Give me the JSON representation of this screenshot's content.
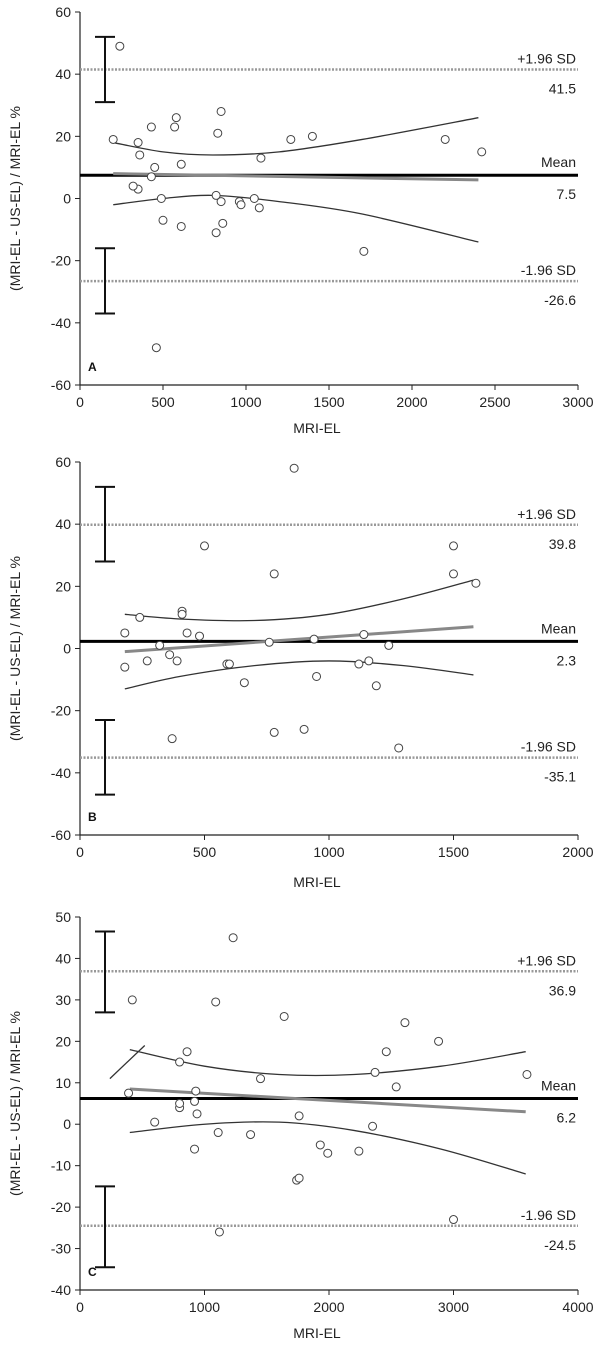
{
  "chart_data": [
    {
      "type": "scatter",
      "panel": "A",
      "xlabel": "MRI-EL",
      "ylabel": "(MRI-EL - US-EL) / MRI-EL %",
      "xlim": [
        0,
        3000
      ],
      "ylim": [
        -60,
        60
      ],
      "x_ticks": [
        "0",
        "500",
        "1000",
        "1500",
        "2000",
        "2500",
        "3000"
      ],
      "y_ticks": [
        "-60",
        "-40",
        "-20",
        "0",
        "20",
        "40",
        "60"
      ],
      "mean": {
        "label": "Mean",
        "value_label": "7.5",
        "value": 7.5
      },
      "upper_loa": {
        "label": "+1.96 SD",
        "value_label": "41.5",
        "value": 41.5
      },
      "lower_loa": {
        "label": "-1.96 SD",
        "value_label": "-26.6",
        "value": -26.6
      },
      "upper_ci": [
        31,
        52
      ],
      "lower_ci": [
        -37,
        -16
      ],
      "regression_line": [
        [
          200,
          8
        ],
        [
          2400,
          6
        ]
      ],
      "upper_curve": [
        [
          200,
          18
        ],
        [
          500,
          15
        ],
        [
          800,
          14
        ],
        [
          1200,
          15
        ],
        [
          1700,
          19
        ],
        [
          2400,
          26
        ]
      ],
      "lower_curve": [
        [
          200,
          -2
        ],
        [
          500,
          0
        ],
        [
          800,
          1
        ],
        [
          1200,
          -1
        ],
        [
          1700,
          -5
        ],
        [
          2400,
          -14
        ]
      ],
      "points": [
        [
          240,
          49
        ],
        [
          200,
          19
        ],
        [
          350,
          18
        ],
        [
          430,
          23
        ],
        [
          360,
          14
        ],
        [
          450,
          10
        ],
        [
          350,
          3
        ],
        [
          320,
          4
        ],
        [
          430,
          7
        ],
        [
          580,
          26
        ],
        [
          570,
          23
        ],
        [
          610,
          11
        ],
        [
          850,
          28
        ],
        [
          830,
          21
        ],
        [
          1270,
          19
        ],
        [
          1400,
          20
        ],
        [
          2200,
          19
        ],
        [
          2420,
          15
        ],
        [
          1090,
          13
        ],
        [
          490,
          0
        ],
        [
          820,
          1
        ],
        [
          850,
          -1
        ],
        [
          960,
          -1
        ],
        [
          970,
          -2
        ],
        [
          1050,
          0
        ],
        [
          1080,
          -3
        ],
        [
          500,
          -7
        ],
        [
          610,
          -9
        ],
        [
          860,
          -8
        ],
        [
          820,
          -11
        ],
        [
          1710,
          -17
        ],
        [
          460,
          -48
        ]
      ]
    },
    {
      "type": "scatter",
      "panel": "B",
      "xlabel": "MRI-EL",
      "ylabel": "(MRI-EL - US-EL) / MRI-EL %",
      "xlim": [
        0,
        2000
      ],
      "ylim": [
        -60,
        60
      ],
      "x_ticks": [
        "0",
        "500",
        "1000",
        "1500",
        "2000"
      ],
      "y_ticks": [
        "-60",
        "-40",
        "-20",
        "0",
        "20",
        "40",
        "60"
      ],
      "mean": {
        "label": "Mean",
        "value_label": "2.3",
        "value": 2.3
      },
      "upper_loa": {
        "label": "+1.96 SD",
        "value_label": "39.8",
        "value": 39.8
      },
      "lower_loa": {
        "label": "-1.96 SD",
        "value_label": "-35.1",
        "value": -35.1
      },
      "upper_ci": [
        28,
        52
      ],
      "lower_ci": [
        -47,
        -23
      ],
      "regression_line": [
        [
          180,
          -1
        ],
        [
          1580,
          7
        ]
      ],
      "upper_curve": [
        [
          180,
          11
        ],
        [
          400,
          9.5
        ],
        [
          700,
          9
        ],
        [
          1000,
          11
        ],
        [
          1300,
          16
        ],
        [
          1580,
          22
        ]
      ],
      "lower_curve": [
        [
          180,
          -13
        ],
        [
          400,
          -9
        ],
        [
          700,
          -5.5
        ],
        [
          1000,
          -4
        ],
        [
          1300,
          -5.5
        ],
        [
          1580,
          -8.5
        ]
      ],
      "points": [
        [
          860,
          58
        ],
        [
          500,
          33
        ],
        [
          1500,
          33
        ],
        [
          780,
          24
        ],
        [
          1500,
          24
        ],
        [
          1590,
          21
        ],
        [
          410,
          12
        ],
        [
          410,
          11
        ],
        [
          240,
          10
        ],
        [
          180,
          5
        ],
        [
          430,
          5
        ],
        [
          480,
          4
        ],
        [
          1140,
          4.5
        ],
        [
          320,
          1
        ],
        [
          760,
          2
        ],
        [
          940,
          3
        ],
        [
          1240,
          1
        ],
        [
          180,
          -6
        ],
        [
          270,
          -4
        ],
        [
          360,
          -2
        ],
        [
          390,
          -4
        ],
        [
          590,
          -5
        ],
        [
          600,
          -5
        ],
        [
          660,
          -11
        ],
        [
          950,
          -9
        ],
        [
          1120,
          -5
        ],
        [
          1160,
          -4
        ],
        [
          1190,
          -12
        ],
        [
          370,
          -29
        ],
        [
          780,
          -27
        ],
        [
          900,
          -26
        ],
        [
          1280,
          -32
        ]
      ]
    },
    {
      "type": "scatter",
      "panel": "C",
      "xlabel": "MRI-EL",
      "ylabel": "(MRI-EL - US-EL) / MRI-EL %",
      "xlim": [
        0,
        4000
      ],
      "ylim": [
        -40,
        50
      ],
      "x_ticks": [
        "0",
        "1000",
        "2000",
        "3000",
        "4000"
      ],
      "y_ticks": [
        "-40",
        "-30",
        "-20",
        "-10",
        "0",
        "10",
        "20",
        "30",
        "40",
        "50"
      ],
      "mean": {
        "label": "Mean",
        "value_label": "6.2",
        "value": 6.2
      },
      "upper_loa": {
        "label": "+1.96 SD",
        "value_label": "36.9",
        "value": 36.9
      },
      "lower_loa": {
        "label": "-1.96 SD",
        "value_label": "-24.5",
        "value": -24.5
      },
      "upper_ci": [
        27,
        46.5
      ],
      "lower_ci": [
        -34.5,
        -15
      ],
      "regression_line": [
        [
          400,
          8.5
        ],
        [
          3580,
          3
        ]
      ],
      "upper_curve": [
        [
          400,
          18
        ],
        [
          1000,
          14
        ],
        [
          1600,
          12
        ],
        [
          2200,
          12
        ],
        [
          2900,
          14
        ],
        [
          3580,
          17.5
        ]
      ],
      "lower_curve": [
        [
          400,
          -2
        ],
        [
          1000,
          0
        ],
        [
          1600,
          0.5
        ],
        [
          2200,
          -1.5
        ],
        [
          2900,
          -6
        ],
        [
          3580,
          -12
        ]
      ],
      "extra_segment": [
        [
          240,
          11
        ],
        [
          520,
          19
        ]
      ],
      "points": [
        [
          1230,
          45
        ],
        [
          420,
          30
        ],
        [
          1090,
          29.5
        ],
        [
          1640,
          26
        ],
        [
          2610,
          24.5
        ],
        [
          2880,
          20
        ],
        [
          860,
          17.5
        ],
        [
          2460,
          17.5
        ],
        [
          800,
          15
        ],
        [
          3590,
          12
        ],
        [
          2370,
          12.5
        ],
        [
          1450,
          11
        ],
        [
          2540,
          9
        ],
        [
          390,
          7.5
        ],
        [
          930,
          8
        ],
        [
          800,
          4
        ],
        [
          800,
          5
        ],
        [
          920,
          5.5
        ],
        [
          940,
          2.5
        ],
        [
          600,
          0.5
        ],
        [
          1760,
          2
        ],
        [
          920,
          -6
        ],
        [
          1110,
          -2
        ],
        [
          1370,
          -2.5
        ],
        [
          1930,
          -5
        ],
        [
          1990,
          -7
        ],
        [
          2240,
          -6.5
        ],
        [
          2350,
          -0.5
        ],
        [
          1740,
          -13.5
        ],
        [
          1760,
          -13
        ],
        [
          1120,
          -26
        ],
        [
          3000,
          -23
        ]
      ]
    }
  ]
}
